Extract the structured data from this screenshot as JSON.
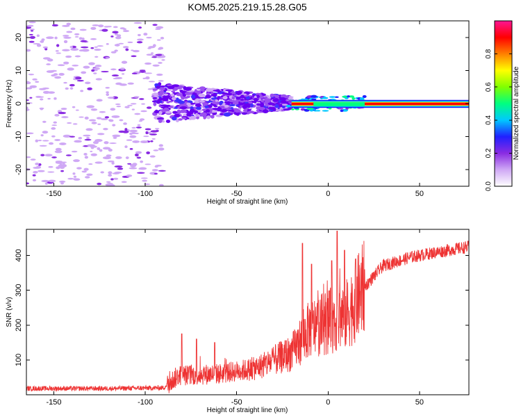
{
  "title": "KOM5.2025.219.15.28.G05",
  "chart_data": [
    {
      "type": "heatmap",
      "name": "spectrogram",
      "xlabel": "Height of straight line (km)",
      "ylabel": "Frequency (Hz)",
      "xlim": [
        -165,
        77
      ],
      "ylim": [
        -25,
        25
      ],
      "xticks": [
        -150,
        -100,
        -50,
        0,
        50
      ],
      "yticks": [
        -20,
        -10,
        0,
        10,
        20
      ],
      "colorbar": {
        "label": "Normalized spectral amplitude",
        "range": [
          0,
          1
        ],
        "ticks": [
          "0.0",
          "0.2",
          "0.4",
          "0.6",
          "0.8"
        ],
        "colors": [
          "#ffffff",
          "#cfa8f5",
          "#8a2be2",
          "#2020ff",
          "#00c8ff",
          "#00ff80",
          "#80ff00",
          "#ffff00",
          "#ff8000",
          "#ff0000",
          "#ff1493"
        ]
      },
      "regions": [
        {
          "name": "noise",
          "x_range": [
            -165,
            -90
          ],
          "f_range": [
            -25,
            25
          ],
          "amplitude": 0.05
        },
        {
          "name": "onset",
          "x_range": [
            -95,
            -20
          ],
          "f_range": [
            -8,
            6
          ],
          "amplitude": 0.12
        },
        {
          "name": "carrier",
          "x_range": [
            -20,
            77
          ],
          "f_range": [
            -1,
            1
          ],
          "amplitude": 0.95
        }
      ]
    },
    {
      "type": "line",
      "name": "snr",
      "xlabel": "Height of straight line (km)",
      "ylabel": "SNR (v/v)",
      "xlim": [
        -165,
        77
      ],
      "ylim": [
        0,
        475
      ],
      "xticks": [
        -150,
        -100,
        -50,
        0,
        50
      ],
      "yticks": [
        100,
        200,
        300,
        400
      ],
      "color": "#ee3333",
      "trend": {
        "x": [
          -165,
          -120,
          -90,
          -82,
          -60,
          -40,
          -20,
          -10,
          0,
          10,
          20,
          30,
          45,
          60,
          77
        ],
        "y": [
          18,
          18,
          20,
          55,
          60,
          75,
          120,
          190,
          210,
          230,
          310,
          370,
          395,
          410,
          425
        ]
      },
      "spikes": [
        {
          "x": -80,
          "y": 175
        },
        {
          "x": -72,
          "y": 160
        },
        {
          "x": -62,
          "y": 150
        },
        {
          "x": -14,
          "y": 435
        },
        {
          "x": -9,
          "y": 375
        },
        {
          "x": 5,
          "y": 470
        },
        {
          "x": 2,
          "y": 385
        },
        {
          "x": 9,
          "y": 415
        },
        {
          "x": 15,
          "y": 390
        }
      ]
    }
  ]
}
